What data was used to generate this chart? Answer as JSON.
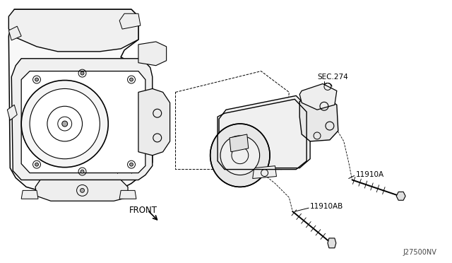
{
  "bg_color": "#ffffff",
  "line_color": "#000000",
  "diagram_code": "J27500NV",
  "sec_label": "SEC.274",
  "part_labels": [
    "11910A",
    "11910AB"
  ],
  "front_label": "FRONT",
  "figsize": [
    6.4,
    3.72
  ],
  "dpi": 100
}
